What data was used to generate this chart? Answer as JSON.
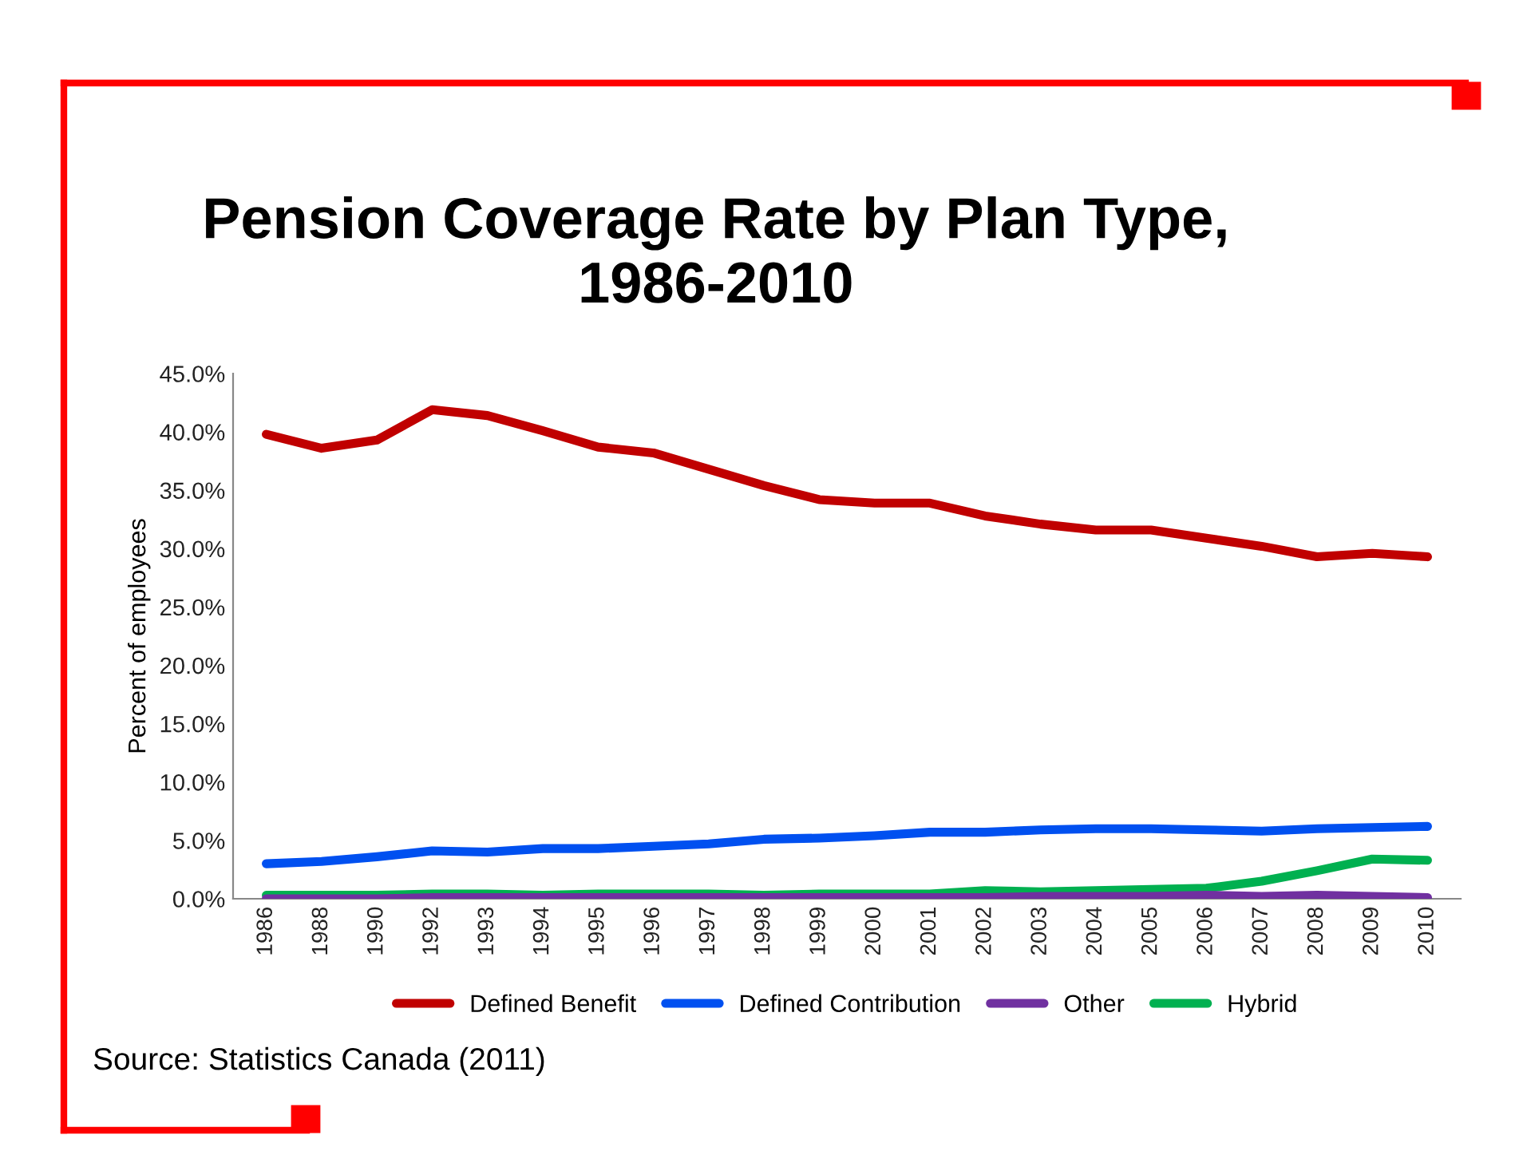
{
  "chart_data": {
    "type": "line",
    "title": "Pension Coverage Rate by Plan Type,\n1986-2010",
    "ylabel": "Percent of employees",
    "categories": [
      "1986",
      "1988",
      "1990",
      "1992",
      "1993",
      "1994",
      "1995",
      "1996",
      "1997",
      "1998",
      "1999",
      "2000",
      "2001",
      "2002",
      "2003",
      "2004",
      "2005",
      "2006",
      "2007",
      "2008",
      "2009",
      "2010"
    ],
    "series": [
      {
        "name": "Defined Benefit",
        "color": "#c00000",
        "values": [
          39.8,
          38.6,
          39.3,
          41.9,
          41.4,
          40.1,
          38.7,
          38.2,
          36.8,
          35.4,
          34.2,
          33.9,
          33.9,
          32.8,
          32.1,
          31.6,
          31.6,
          30.9,
          30.2,
          29.3,
          29.6,
          29.3
        ]
      },
      {
        "name": "Defined Contribution",
        "color": "#0050f0",
        "values": [
          3.0,
          3.2,
          3.6,
          4.1,
          4.0,
          4.3,
          4.3,
          4.5,
          4.7,
          5.1,
          5.2,
          5.4,
          5.7,
          5.7,
          5.9,
          6.0,
          6.0,
          5.9,
          5.8,
          6.0,
          6.1,
          6.2
        ]
      },
      {
        "name": "Other",
        "color": "#7030a0",
        "values": [
          0.0,
          0.0,
          0.0,
          0.1,
          0.1,
          0.1,
          0.1,
          0.1,
          0.1,
          0.1,
          0.1,
          0.1,
          0.1,
          0.1,
          0.2,
          0.2,
          0.2,
          0.3,
          0.2,
          0.3,
          0.2,
          0.1
        ]
      },
      {
        "name": "Hybrid",
        "color": "#00b050",
        "values": [
          0.3,
          0.3,
          0.3,
          0.4,
          0.4,
          0.3,
          0.4,
          0.4,
          0.4,
          0.3,
          0.4,
          0.4,
          0.4,
          0.7,
          0.6,
          0.7,
          0.8,
          0.9,
          1.5,
          2.4,
          3.4,
          3.3
        ]
      }
    ],
    "ylim": [
      0,
      45
    ],
    "yticks": [
      {
        "value": 0,
        "label": "0.0%"
      },
      {
        "value": 5,
        "label": "5.0%"
      },
      {
        "value": 10,
        "label": "10.0%"
      },
      {
        "value": 15,
        "label": "15.0%"
      },
      {
        "value": 20,
        "label": "20.0%"
      },
      {
        "value": 25,
        "label": "25.0%"
      },
      {
        "value": 30,
        "label": "30.0%"
      },
      {
        "value": 35,
        "label": "35.0%"
      },
      {
        "value": 40,
        "label": "40.0%"
      },
      {
        "value": 45,
        "label": "45.0%"
      }
    ],
    "grid": false,
    "legend": "bottom",
    "marker": "none",
    "line_style": "solid",
    "annotations": [
      "Source: Statistics Canada (2011)"
    ]
  }
}
